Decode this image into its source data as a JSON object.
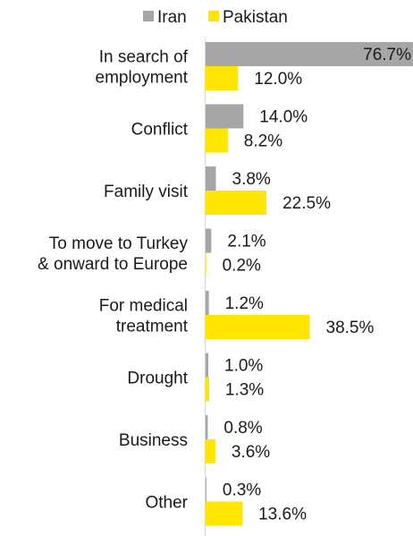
{
  "chart_data": {
    "type": "bar",
    "orientation": "horizontal",
    "title": "",
    "xlabel": "",
    "ylabel": "",
    "xlim": [
      0,
      76.7
    ],
    "grid": false,
    "legend_position": "top",
    "value_suffix": "%",
    "categories": [
      [
        "In search of",
        "employment"
      ],
      [
        "Conflict"
      ],
      [
        "Family visit"
      ],
      [
        "To move to Turkey",
        "& onward to Europe"
      ],
      [
        "For medical",
        "treatment"
      ],
      [
        "Drought"
      ],
      [
        "Business"
      ],
      [
        "Other"
      ]
    ],
    "series": [
      {
        "name": "Iran",
        "color": "#a6a6a6",
        "values": [
          76.7,
          14.0,
          3.8,
          2.1,
          1.2,
          1.0,
          0.8,
          0.3
        ]
      },
      {
        "name": "Pakistan",
        "color": "#ffe600",
        "values": [
          12.0,
          8.2,
          22.5,
          0.2,
          38.5,
          1.3,
          3.6,
          13.6
        ]
      }
    ]
  }
}
